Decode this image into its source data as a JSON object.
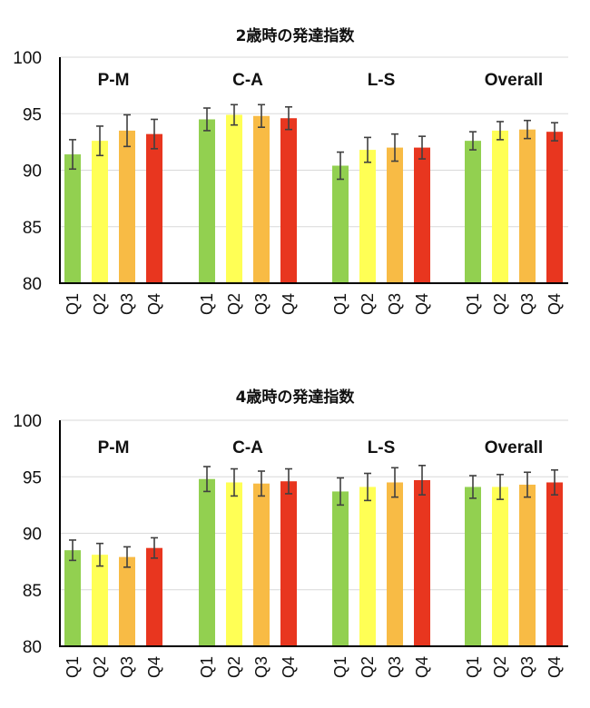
{
  "chart_data": [
    {
      "type": "bar",
      "title": "2歳時の発達指数",
      "ylim": [
        80,
        100
      ],
      "yticks": [
        80,
        85,
        90,
        95,
        100
      ],
      "grid": true,
      "groups": [
        {
          "label": "P-M",
          "categories": [
            "Q1",
            "Q2",
            "Q3",
            "Q4"
          ],
          "values": [
            91.4,
            92.6,
            93.5,
            93.2
          ],
          "errors": [
            1.3,
            1.3,
            1.4,
            1.3
          ]
        },
        {
          "label": "C-A",
          "categories": [
            "Q1",
            "Q2",
            "Q3",
            "Q4"
          ],
          "values": [
            94.5,
            94.9,
            94.8,
            94.6
          ],
          "errors": [
            1.0,
            0.9,
            1.0,
            1.0
          ]
        },
        {
          "label": "L-S",
          "categories": [
            "Q1",
            "Q2",
            "Q3",
            "Q4"
          ],
          "values": [
            90.4,
            91.8,
            92.0,
            92.0
          ],
          "errors": [
            1.2,
            1.1,
            1.2,
            1.0
          ]
        },
        {
          "label": "Overall",
          "categories": [
            "Q1",
            "Q2",
            "Q3",
            "Q4"
          ],
          "values": [
            92.6,
            93.5,
            93.6,
            93.4
          ],
          "errors": [
            0.8,
            0.8,
            0.8,
            0.8
          ]
        }
      ]
    },
    {
      "type": "bar",
      "title": "4歳時の発達指数",
      "ylim": [
        80,
        100
      ],
      "yticks": [
        80,
        85,
        90,
        95,
        100
      ],
      "grid": true,
      "groups": [
        {
          "label": "P-M",
          "categories": [
            "Q1",
            "Q2",
            "Q3",
            "Q4"
          ],
          "values": [
            88.5,
            88.1,
            87.9,
            88.7
          ],
          "errors": [
            0.9,
            1.0,
            0.9,
            0.9
          ]
        },
        {
          "label": "C-A",
          "categories": [
            "Q1",
            "Q2",
            "Q3",
            "Q4"
          ],
          "values": [
            94.8,
            94.5,
            94.4,
            94.6
          ],
          "errors": [
            1.1,
            1.2,
            1.1,
            1.1
          ]
        },
        {
          "label": "L-S",
          "categories": [
            "Q1",
            "Q2",
            "Q3",
            "Q4"
          ],
          "values": [
            93.7,
            94.1,
            94.5,
            94.7
          ],
          "errors": [
            1.2,
            1.2,
            1.3,
            1.3
          ]
        },
        {
          "label": "Overall",
          "categories": [
            "Q1",
            "Q2",
            "Q3",
            "Q4"
          ],
          "values": [
            94.1,
            94.1,
            94.3,
            94.5
          ],
          "errors": [
            1.0,
            1.1,
            1.1,
            1.1
          ]
        }
      ]
    }
  ],
  "colors": {
    "Q1": "#92d050",
    "Q2": "#ffff55",
    "Q3": "#f8bb45",
    "Q4": "#e8361f",
    "grid": "#d9d9d9",
    "axis": "#000000",
    "error_bar": "#404040"
  }
}
